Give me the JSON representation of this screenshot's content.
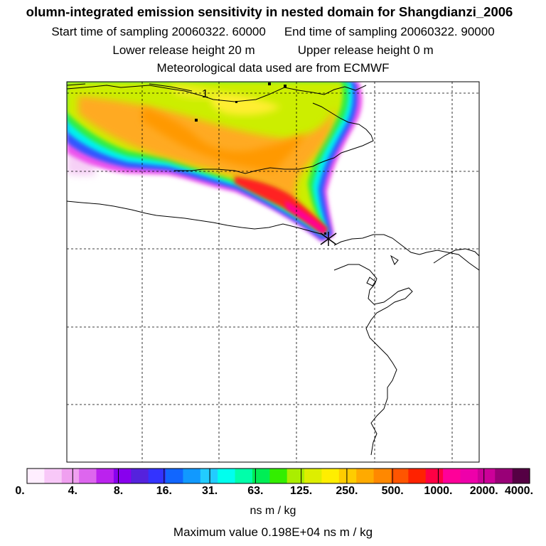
{
  "header": {
    "title": "olumn-integrated emission sensitivity in nested domain for Shangdianzi_2006",
    "start_label": "Start time of sampling 20060322. 60000",
    "end_label": "End time of sampling 20060322. 90000",
    "lower_label": "Lower release height   20 m",
    "upper_label": "Upper release height    0 m",
    "met_label": "Meteorological data used are from ECMWF"
  },
  "colorbar": {
    "tick_labels": [
      "0.",
      "4.",
      "8.",
      "16.",
      "31.",
      "63.",
      "125.",
      "250.",
      "500.",
      "1000.",
      "2000.",
      "4000."
    ],
    "units": "ns m / kg",
    "colors": [
      "#ffeeff",
      "#f8c8f8",
      "#f0a0f0",
      "#dd66ee",
      "#bb22ee",
      "#8800ee",
      "#5522dd",
      "#3333ff",
      "#1166ff",
      "#1199ff",
      "#22ccff",
      "#00ffee",
      "#00ffaa",
      "#00ee55",
      "#33ee00",
      "#aaee00",
      "#ddee00",
      "#ffee00",
      "#ffcc00",
      "#ffaa00",
      "#ff8800",
      "#ff5500",
      "#ff2200",
      "#ff0044",
      "#ff0099",
      "#ee00aa",
      "#cc0099",
      "#990077",
      "#550044"
    ]
  },
  "max_value": "Maximum value  0.198E+04 ns m / kg",
  "map": {
    "contour_label": "1",
    "release_marker": "release-site"
  }
}
